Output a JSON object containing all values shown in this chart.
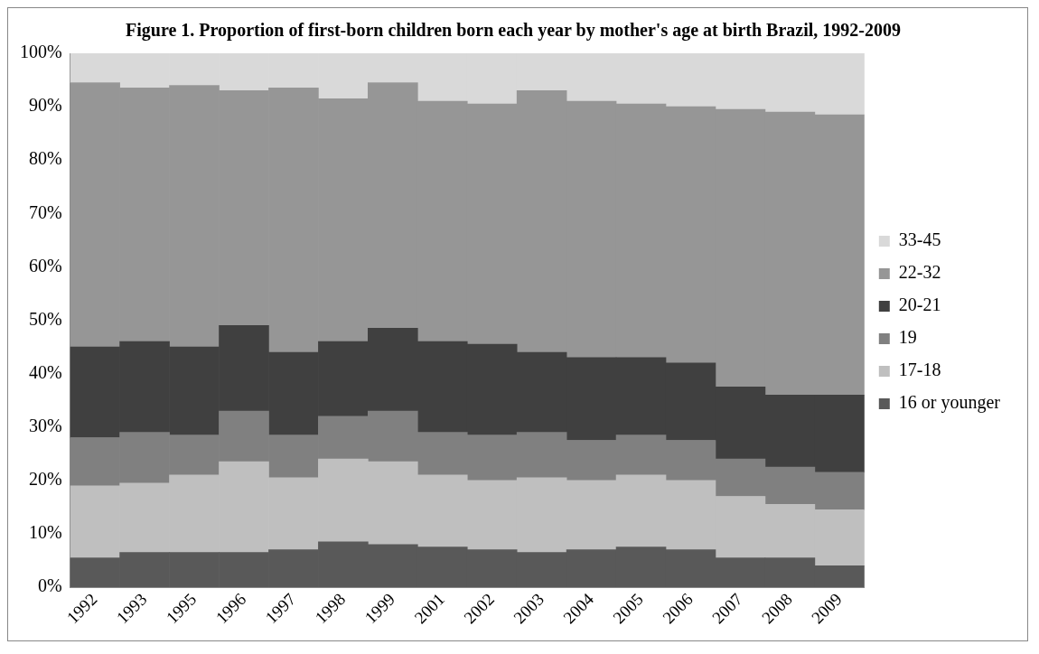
{
  "chart_data": {
    "type": "bar",
    "title": "Figure 1. Proportion of first-born children born each year by mother's age at birth Brazil, 1992-2009",
    "stacked": true,
    "legend": "right",
    "grid": false,
    "categories": [
      "1992",
      "1993",
      "1995",
      "1996",
      "1997",
      "1998",
      "1999",
      "2001",
      "2002",
      "2003",
      "2004",
      "2005",
      "2006",
      "2007",
      "2008",
      "2009"
    ],
    "ylim": [
      0,
      100
    ],
    "yticks": [
      {
        "value": 0,
        "label": "0%"
      },
      {
        "value": 10,
        "label": "10%"
      },
      {
        "value": 20,
        "label": "20%"
      },
      {
        "value": 30,
        "label": "30%"
      },
      {
        "value": 40,
        "label": "40%"
      },
      {
        "value": 50,
        "label": "50%"
      },
      {
        "value": 60,
        "label": "60%"
      },
      {
        "value": 70,
        "label": "70%"
      },
      {
        "value": 80,
        "label": "80%"
      },
      {
        "value": 90,
        "label": "90%"
      },
      {
        "value": 100,
        "label": "100%"
      }
    ],
    "series": [
      {
        "name": "16 or younger",
        "color": "#595959",
        "values": [
          5.5,
          6.5,
          6.5,
          6.5,
          7,
          8.5,
          8,
          7.5,
          7,
          6.5,
          7,
          7.5,
          7,
          5.5,
          5.5,
          4
        ]
      },
      {
        "name": "17-18",
        "color": "#bfbfbf",
        "values": [
          13.5,
          13,
          14.5,
          17,
          13.5,
          15.5,
          15.5,
          13.5,
          13,
          14,
          13,
          13.5,
          13,
          11.5,
          10,
          10.5
        ]
      },
      {
        "name": "19",
        "color": "#808080",
        "values": [
          9,
          9.5,
          7.5,
          9.5,
          8,
          8,
          9.5,
          8,
          8.5,
          8.5,
          7.5,
          7.5,
          7.5,
          7,
          7,
          7
        ]
      },
      {
        "name": "20-21",
        "color": "#404040",
        "values": [
          17,
          17,
          16.5,
          16,
          15.5,
          14,
          15.5,
          17,
          17,
          15,
          15.5,
          14.5,
          14.5,
          13.5,
          13.5,
          14.5
        ]
      },
      {
        "name": "22-32",
        "color": "#969696",
        "values": [
          49.5,
          47.5,
          49,
          44,
          49.5,
          45.5,
          46,
          45,
          45,
          49,
          48,
          47.5,
          48,
          52,
          53,
          52.5
        ]
      },
      {
        "name": "33-45",
        "color": "#d9d9d9",
        "values": [
          5.5,
          6.5,
          6,
          7,
          6.5,
          8.5,
          5.5,
          9,
          9.5,
          7,
          9,
          9.5,
          10,
          10.5,
          11,
          11.5
        ]
      }
    ]
  }
}
